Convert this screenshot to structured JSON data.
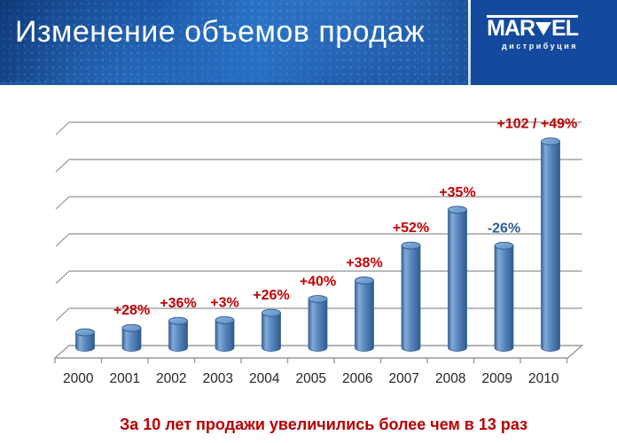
{
  "slide": {
    "title": "Изменение объемов продаж",
    "caption": "За 10 лет продажи увеличились более чем в 13 раз"
  },
  "logo": {
    "full_name": "MARVEL",
    "text_mar": "MAR",
    "text_el": "EL",
    "triangle_icon": "triangle-down",
    "subtitle": "дистрибуция"
  },
  "chart_data": {
    "type": "bar",
    "style": "3d-cylinder",
    "title": "Изменение объемов продаж",
    "categories": [
      "2000",
      "2001",
      "2002",
      "2003",
      "2004",
      "2005",
      "2006",
      "2007",
      "2008",
      "2009",
      "2010"
    ],
    "values": [
      1.0,
      1.28,
      1.74,
      1.79,
      2.26,
      3.16,
      4.36,
      6.63,
      8.95,
      6.62,
      13.38
    ],
    "values_note": "relative sales index, 2000 = 1; estimated from the year-over-year growth labels (no value axis shown)",
    "bar_labels": [
      "",
      "+28%",
      "+36%",
      "+3%",
      "+26%",
      "+40%",
      "+38%",
      "+52%",
      "+35%",
      "-26%",
      "+102 / +49%"
    ],
    "bar_label_colors": [
      "",
      "#c00000",
      "#c00000",
      "#c00000",
      "#c00000",
      "#c00000",
      "#c00000",
      "#c00000",
      "#c00000",
      "#2a5d9e",
      "#c00000"
    ],
    "xlabel": "",
    "ylabel": "",
    "ylim": [
      0,
      14
    ],
    "grid": true,
    "gridline_count": 6,
    "legend": false,
    "bar_color": "#4f81bd"
  },
  "colors": {
    "header_navy": "#134a9d",
    "separator_light_blue": "#cde4f7",
    "title_text": "#ffffff",
    "caption_red": "#b80000",
    "label_red": "#c00000",
    "label_blue": "#2a5d9e",
    "gridline_gray": "#a3a3a3",
    "axis_gray": "#9a9a9a",
    "year_label": "#262626"
  }
}
